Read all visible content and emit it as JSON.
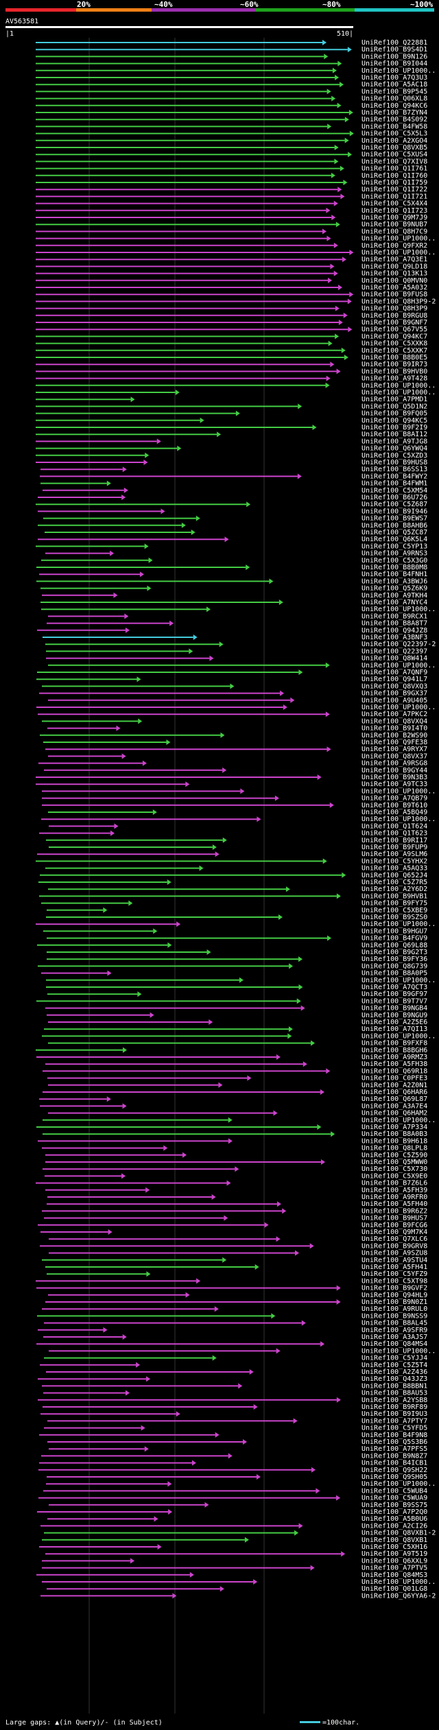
{
  "colors": {
    "background": "#000000",
    "bar_red": "#e8252a",
    "bar_orange": "#ef7f16",
    "bar_purple": "#9b2fae",
    "bar_green": "#1fa21d",
    "bar_cyan": "#21c4c4",
    "hit_cyan": "#44ccdd",
    "hit_green": "#44cc44",
    "hit_magenta": "#cc44cc",
    "grid": "#333333",
    "text": "#ffffff"
  },
  "scale": {
    "labels": [
      "20%",
      "~40%",
      "~60%",
      "~80%",
      "~100%"
    ]
  },
  "query": {
    "id": "AV563581",
    "start_tick": "|1",
    "end_tick": "510|"
  },
  "hits": [
    {
      "id": "UniRef100_Q22881",
      "c": "cyan"
    },
    {
      "id": "UniRef100_B9S4D1",
      "c": "cyan"
    },
    {
      "id": "UniRef100_B9N126",
      "c": "green"
    },
    {
      "id": "UniRef100_B9I044",
      "c": "green"
    },
    {
      "id": "UniRef100_UP1000..",
      "c": "green"
    },
    {
      "id": "UniRef100_A7Q3U3",
      "c": "green"
    },
    {
      "id": "UniRef100_A5AC18",
      "c": "green"
    },
    {
      "id": "UniRef100_B9P545",
      "c": "green"
    },
    {
      "id": "UniRef100_Q06XL8",
      "c": "green"
    },
    {
      "id": "UniRef100_Q94KC6",
      "c": "green"
    },
    {
      "id": "UniRef100_B7ZYN4",
      "c": "green"
    },
    {
      "id": "UniRef100_B4S092",
      "c": "green"
    },
    {
      "id": "UniRef100_B4FW58",
      "c": "green"
    },
    {
      "id": "UniRef100_C5X5L3",
      "c": "green"
    },
    {
      "id": "UniRef100_A2XGO4",
      "c": "green"
    },
    {
      "id": "UniRef100_Q8VXB5",
      "c": "green"
    },
    {
      "id": "UniRef100_C5XUS4",
      "c": "green"
    },
    {
      "id": "UniRef100_Q7XIV8",
      "c": "green"
    },
    {
      "id": "UniRef100_Q1I761",
      "c": "green"
    },
    {
      "id": "UniRef100_Q1I760",
      "c": "green"
    },
    {
      "id": "UniRef100_Q1I759",
      "c": "green"
    },
    {
      "id": "UniRef100_Q1I722",
      "c": "magenta"
    },
    {
      "id": "UniRef100_Q1I721",
      "c": "magenta"
    },
    {
      "id": "UniRef100_C5X4X4",
      "c": "magenta"
    },
    {
      "id": "UniRef100_Q1I723",
      "c": "magenta"
    },
    {
      "id": "UniRef100_Q9M7J9",
      "c": "magenta"
    },
    {
      "id": "UniRef100_B9NUB7",
      "c": "green"
    },
    {
      "id": "UniRef100_Q8H7C9",
      "c": "magenta"
    },
    {
      "id": "UniRef100_UP1000..",
      "c": "magenta"
    },
    {
      "id": "UniRef100_Q9FXR2",
      "c": "magenta"
    },
    {
      "id": "UniRef100_UP1000..",
      "c": "magenta"
    },
    {
      "id": "UniRef100_A7Q3E1",
      "c": "magenta"
    },
    {
      "id": "UniRef100_Q9LD18",
      "c": "magenta"
    },
    {
      "id": "UniRef100_Q13K13",
      "c": "magenta"
    },
    {
      "id": "UniRef100_Q0MVN0",
      "c": "magenta"
    },
    {
      "id": "UniRef100_A5A032",
      "c": "magenta"
    },
    {
      "id": "UniRef100_B9FUS8",
      "c": "magenta"
    },
    {
      "id": "UniRef100_Q8H3P9-2",
      "c": "magenta"
    },
    {
      "id": "UniRef100_Q8H3P9",
      "c": "magenta"
    },
    {
      "id": "UniRef100_B9RGU8",
      "c": "magenta"
    },
    {
      "id": "UniRef100_B9GNF7",
      "c": "magenta"
    },
    {
      "id": "UniRef100_Q67V55",
      "c": "magenta"
    },
    {
      "id": "UniRef100_Q94KC7",
      "c": "green"
    },
    {
      "id": "UniRef100_C5XXK8",
      "c": "green"
    },
    {
      "id": "UniRef100_C5XXK7",
      "c": "green"
    },
    {
      "id": "UniRef100_B8B0E5",
      "c": "green"
    },
    {
      "id": "UniRef100_B9IR73",
      "c": "magenta"
    },
    {
      "id": "UniRef100_B9HVB0",
      "c": "magenta"
    },
    {
      "id": "UniRef100_A9T428",
      "c": "magenta"
    },
    {
      "id": "UniRef100_UP1000..",
      "c": "green"
    },
    {
      "id": "UniRef100_UP1000..",
      "c": "green"
    },
    {
      "id": "UniRef100_A7PMD1",
      "c": "green"
    },
    {
      "id": "UniRef100_Q5D1N2",
      "c": "green"
    },
    {
      "id": "UniRef100_B9FQ05",
      "c": "green"
    },
    {
      "id": "UniRef100_Q94KC5",
      "c": "green"
    },
    {
      "id": "UniRef100_B9F2I9",
      "c": "green"
    },
    {
      "id": "UniRef100_B8AI12",
      "c": "green"
    },
    {
      "id": "UniRef100_A9TJG8",
      "c": "magenta"
    },
    {
      "id": "UniRef100_Q6YWQ4",
      "c": "green"
    },
    {
      "id": "UniRef100_C5XZD3",
      "c": "green"
    },
    {
      "id": "UniRef100_B9HUS8",
      "c": "magenta"
    },
    {
      "id": "UniRef100_B6SS13",
      "c": "magenta"
    },
    {
      "id": "UniRef100_B4FWY2",
      "c": "magenta"
    },
    {
      "id": "UniRef100_B4FWM1",
      "c": "green"
    },
    {
      "id": "UniRef100_C5XM54",
      "c": "magenta"
    },
    {
      "id": "UniRef100_B6U726",
      "c": "magenta"
    },
    {
      "id": "UniRef100_C5Z687",
      "c": "green"
    },
    {
      "id": "UniRef100_B9I946",
      "c": "magenta"
    },
    {
      "id": "UniRef100_B9EWS7",
      "c": "green"
    },
    {
      "id": "UniRef100_B8AHB6",
      "c": "green"
    },
    {
      "id": "UniRef100_Q5ZC87",
      "c": "green"
    },
    {
      "id": "UniRef100_Q6K5L4",
      "c": "magenta"
    },
    {
      "id": "UniRef100_C5YP13",
      "c": "green"
    },
    {
      "id": "UniRef100_A9RNS3",
      "c": "magenta"
    },
    {
      "id": "UniRef100_C5X3G0",
      "c": "green"
    },
    {
      "id": "UniRef100_B8B0M8",
      "c": "green"
    },
    {
      "id": "UniRef100_B4FNH1",
      "c": "magenta"
    },
    {
      "id": "UniRef100_A3BWJ6",
      "c": "green"
    },
    {
      "id": "UniRef100_Q5Z6K9",
      "c": "green"
    },
    {
      "id": "UniRef100_A9TKH4",
      "c": "magenta"
    },
    {
      "id": "UniRef100_A7NYC4",
      "c": "green"
    },
    {
      "id": "UniRef100_UP1000..",
      "c": "green"
    },
    {
      "id": "UniRef100_B9RCX1",
      "c": "magenta"
    },
    {
      "id": "UniRef100_B8A8T7",
      "c": "magenta"
    },
    {
      "id": "UniRef100_Q94JZ8",
      "c": "magenta"
    },
    {
      "id": "UniRef100_A3BNF3",
      "c": "cyan"
    },
    {
      "id": "UniRef100_Q22397-2",
      "c": "green"
    },
    {
      "id": "UniRef100_Q22397",
      "c": "green"
    },
    {
      "id": "UniRef100_Q8W414",
      "c": "magenta"
    },
    {
      "id": "UniRef100_UP1000..",
      "c": "green"
    },
    {
      "id": "UniRef100_A7QNF9",
      "c": "green"
    },
    {
      "id": "UniRef100_Q941L7",
      "c": "green"
    },
    {
      "id": "UniRef100_Q8VXQ3",
      "c": "green"
    },
    {
      "id": "UniRef100_B9GX37",
      "c": "magenta"
    },
    {
      "id": "UniRef100_A9U405",
      "c": "magenta"
    },
    {
      "id": "UniRef100_UP1000..",
      "c": "magenta"
    },
    {
      "id": "UniRef100_A7PKC2",
      "c": "magenta"
    },
    {
      "id": "UniRef100_Q8VXQ4",
      "c": "green"
    },
    {
      "id": "UniRef100_B9I4T0",
      "c": "magenta"
    },
    {
      "id": "UniRef100_B2WS90",
      "c": "green"
    },
    {
      "id": "UniRef100_Q9FE38",
      "c": "green"
    },
    {
      "id": "UniRef100_A9RYX7",
      "c": "magenta"
    },
    {
      "id": "UniRef100_Q8VX37",
      "c": "magenta"
    },
    {
      "id": "UniRef100_A9RSG8",
      "c": "magenta"
    },
    {
      "id": "UniRef100_B9GY44",
      "c": "magenta"
    },
    {
      "id": "UniRef100_B9N3B3",
      "c": "magenta"
    },
    {
      "id": "UniRef100_A9TC33",
      "c": "magenta"
    },
    {
      "id": "UniRef100_UP1000..",
      "c": "magenta"
    },
    {
      "id": "UniRef100_A7QB79",
      "c": "magenta"
    },
    {
      "id": "UniRef100_B9T610",
      "c": "magenta"
    },
    {
      "id": "UniRef100_A5BQ49",
      "c": "green"
    },
    {
      "id": "UniRef100_UP1000..",
      "c": "magenta"
    },
    {
      "id": "UniRef100_Q1T624",
      "c": "magenta"
    },
    {
      "id": "UniRef100_Q1T623",
      "c": "magenta"
    },
    {
      "id": "UniRef100_B9RI17",
      "c": "green"
    },
    {
      "id": "UniRef100_B9FUP9",
      "c": "green"
    },
    {
      "id": "UniRef100_A9SLM6",
      "c": "magenta"
    },
    {
      "id": "UniRef100_C5YHX2",
      "c": "green"
    },
    {
      "id": "UniRef100_A5AQ33",
      "c": "green"
    },
    {
      "id": "UniRef100_Q652J4",
      "c": "green"
    },
    {
      "id": "UniRef100_C5Z7R5",
      "c": "green"
    },
    {
      "id": "UniRef100_A2Y6D2",
      "c": "green"
    },
    {
      "id": "UniRef100_B9HVB1",
      "c": "green"
    },
    {
      "id": "UniRef100_B9FY75",
      "c": "green"
    },
    {
      "id": "UniRef100_C5XBE9",
      "c": "green"
    },
    {
      "id": "UniRef100_B9SZS0",
      "c": "green"
    },
    {
      "id": "UniRef100_UP1000..",
      "c": "magenta"
    },
    {
      "id": "UniRef100_B9HGU7",
      "c": "green"
    },
    {
      "id": "UniRef100_B4FGV9",
      "c": "green"
    },
    {
      "id": "UniRef100_Q69L88",
      "c": "green"
    },
    {
      "id": "UniRef100_B9G2T3",
      "c": "green"
    },
    {
      "id": "UniRef100_B9FY36",
      "c": "green"
    },
    {
      "id": "UniRef100_Q8G739",
      "c": "green"
    },
    {
      "id": "UniRef100_B8A0P5",
      "c": "magenta"
    },
    {
      "id": "UniRef100_UP1000..",
      "c": "green"
    },
    {
      "id": "UniRef100_A7QCT3",
      "c": "green"
    },
    {
      "id": "UniRef100_B9GF97",
      "c": "green"
    },
    {
      "id": "UniRef100_B9T7V7",
      "c": "green"
    },
    {
      "id": "UniRef100_B9NGB4",
      "c": "magenta"
    },
    {
      "id": "UniRef100_B9NGU9",
      "c": "magenta"
    },
    {
      "id": "UniRef100_A2Z5E6",
      "c": "magenta"
    },
    {
      "id": "UniRef100_A7QI13",
      "c": "green"
    },
    {
      "id": "UniRef100_UP1000..",
      "c": "green"
    },
    {
      "id": "UniRef100_B9FXF8",
      "c": "green"
    },
    {
      "id": "UniRef100_B8BGH6",
      "c": "green"
    },
    {
      "id": "UniRef100_A9RMZ3",
      "c": "magenta"
    },
    {
      "id": "UniRef100_A5FH38",
      "c": "magenta"
    },
    {
      "id": "UniRef100_Q69R18",
      "c": "magenta"
    },
    {
      "id": "UniRef100_C0PFE3",
      "c": "magenta"
    },
    {
      "id": "UniRef100_A2Z0N1",
      "c": "magenta"
    },
    {
      "id": "UniRef100_Q6HAR6",
      "c": "magenta"
    },
    {
      "id": "UniRef100_Q69L87",
      "c": "magenta"
    },
    {
      "id": "UniRef100_A3A7E4",
      "c": "magenta"
    },
    {
      "id": "UniRef100_Q6HAM2",
      "c": "magenta"
    },
    {
      "id": "UniRef100_UP1000..",
      "c": "green"
    },
    {
      "id": "UniRef100_A7P334",
      "c": "green"
    },
    {
      "id": "UniRef100_B8A0B3",
      "c": "green"
    },
    {
      "id": "UniRef100_B9H618",
      "c": "magenta"
    },
    {
      "id": "UniRef100_Q8LPL8",
      "c": "magenta"
    },
    {
      "id": "UniRef100_C5Z590",
      "c": "magenta"
    },
    {
      "id": "UniRef100_Q5MWW0",
      "c": "magenta"
    },
    {
      "id": "UniRef100_C5X730",
      "c": "magenta"
    },
    {
      "id": "UniRef100_C5X9E0",
      "c": "magenta"
    },
    {
      "id": "UniRef100_B7Z6L6",
      "c": "magenta"
    },
    {
      "id": "UniRef100_A5FH39",
      "c": "magenta"
    },
    {
      "id": "UniRef100_A9RFR0",
      "c": "magenta"
    },
    {
      "id": "UniRef100_A5FH40",
      "c": "magenta"
    },
    {
      "id": "UniRef100_B9R6Z2",
      "c": "magenta"
    },
    {
      "id": "UniRef100_B9HUS7",
      "c": "magenta"
    },
    {
      "id": "UniRef100_B9FCG6",
      "c": "magenta"
    },
    {
      "id": "UniRef100_Q9M7K4",
      "c": "magenta"
    },
    {
      "id": "UniRef100_Q7XLC6",
      "c": "magenta"
    },
    {
      "id": "UniRef100_B9GRV8",
      "c": "magenta"
    },
    {
      "id": "UniRef100_A9SZU8",
      "c": "magenta"
    },
    {
      "id": "UniRef100_A9STU4",
      "c": "green"
    },
    {
      "id": "UniRef100_A5FH41",
      "c": "green"
    },
    {
      "id": "UniRef100_C5YFZ9",
      "c": "green"
    },
    {
      "id": "UniRef100_C5XT98",
      "c": "magenta"
    },
    {
      "id": "UniRef100_B9GVF2",
      "c": "magenta"
    },
    {
      "id": "UniRef100_Q94HL9",
      "c": "magenta"
    },
    {
      "id": "UniRef100_B9N0Z1",
      "c": "magenta"
    },
    {
      "id": "UniRef100_A9RUL0",
      "c": "magenta"
    },
    {
      "id": "UniRef100_B9NSS9",
      "c": "green"
    },
    {
      "id": "UniRef100_B8AL45",
      "c": "magenta"
    },
    {
      "id": "UniRef100_A9SFR9",
      "c": "magenta"
    },
    {
      "id": "UniRef100_A3AJS7",
      "c": "magenta"
    },
    {
      "id": "UniRef100_Q84MS4",
      "c": "magenta"
    },
    {
      "id": "UniRef100_UP1000..",
      "c": "magenta"
    },
    {
      "id": "UniRef100_C5YJJ4",
      "c": "green"
    },
    {
      "id": "UniRef100_C5Z5T4",
      "c": "magenta"
    },
    {
      "id": "UniRef100_A2Z436",
      "c": "magenta"
    },
    {
      "id": "UniRef100_Q43JZ3",
      "c": "magenta"
    },
    {
      "id": "UniRef100_B8BBN1",
      "c": "magenta"
    },
    {
      "id": "UniRef100_B8AU53",
      "c": "magenta"
    },
    {
      "id": "UniRef100_A2YSB8",
      "c": "magenta"
    },
    {
      "id": "UniRef100_B9RF89",
      "c": "magenta"
    },
    {
      "id": "UniRef100_B9I9U3",
      "c": "magenta"
    },
    {
      "id": "UniRef100_A7PTY7",
      "c": "magenta"
    },
    {
      "id": "UniRef100_C5YFD5",
      "c": "magenta"
    },
    {
      "id": "UniRef100_B4F9N8",
      "c": "magenta"
    },
    {
      "id": "UniRef100_Q5S3B6",
      "c": "magenta"
    },
    {
      "id": "UniRef100_A7PFS5",
      "c": "magenta"
    },
    {
      "id": "UniRef100_B9N8Z7",
      "c": "magenta"
    },
    {
      "id": "UniRef100_B4ICB1",
      "c": "magenta"
    },
    {
      "id": "UniRef100_Q9SH22",
      "c": "magenta"
    },
    {
      "id": "UniRef100_Q9SH05",
      "c": "magenta"
    },
    {
      "id": "UniRef100_UP1000..",
      "c": "magenta"
    },
    {
      "id": "UniRef100_C5WUB4",
      "c": "magenta"
    },
    {
      "id": "UniRef100_C5WUA9",
      "c": "magenta"
    },
    {
      "id": "UniRef100_B9SS75",
      "c": "magenta"
    },
    {
      "id": "UniRef100_A7P2Q0",
      "c": "magenta"
    },
    {
      "id": "UniRef100_A5B0U6",
      "c": "magenta"
    },
    {
      "id": "UniRef100_A2CI26",
      "c": "magenta"
    },
    {
      "id": "UniRef100_Q8VXB1-2",
      "c": "green"
    },
    {
      "id": "UniRef100_Q8VXB1",
      "c": "green"
    },
    {
      "id": "UniRef100_C5XH16",
      "c": "magenta"
    },
    {
      "id": "UniRef100_A9T519",
      "c": "magenta"
    },
    {
      "id": "UniRef100_Q6XXL9",
      "c": "magenta"
    },
    {
      "id": "UniRef100_A7PTV5",
      "c": "magenta"
    },
    {
      "id": "UniRef100_Q84MS3",
      "c": "magenta"
    },
    {
      "id": "UniRef100_UP1000..",
      "c": "magenta"
    },
    {
      "id": "UniRef100_Q01LG8",
      "c": "magenta"
    },
    {
      "id": "UniRef100_Q6YYA6-2",
      "c": "magenta"
    }
  ],
  "footer": {
    "legend_text": "Large gaps: ▲(in Query)/- (in Subject)",
    "scale_text": "=100char."
  }
}
